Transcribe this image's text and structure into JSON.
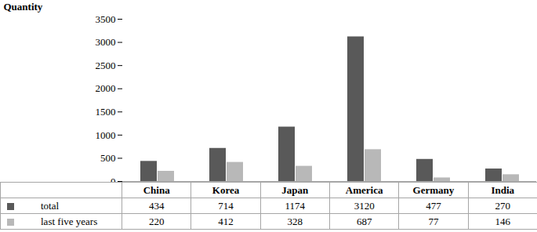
{
  "chart_data": {
    "type": "bar",
    "ylabel": "Quantity",
    "categories": [
      "China",
      "Korea",
      "Japan",
      "America",
      "Germany",
      "India"
    ],
    "series": [
      {
        "name": "total",
        "color": "#595959",
        "values": [
          434,
          714,
          1174,
          3120,
          477,
          270
        ]
      },
      {
        "name": "last five years",
        "color": "#b8b8b8",
        "values": [
          220,
          412,
          328,
          687,
          77,
          146
        ]
      }
    ],
    "ylim": [
      0,
      3500
    ],
    "yticks": [
      0,
      500,
      1000,
      1500,
      2000,
      2500,
      3000,
      3500
    ],
    "grid": false,
    "legend": "bottom"
  }
}
